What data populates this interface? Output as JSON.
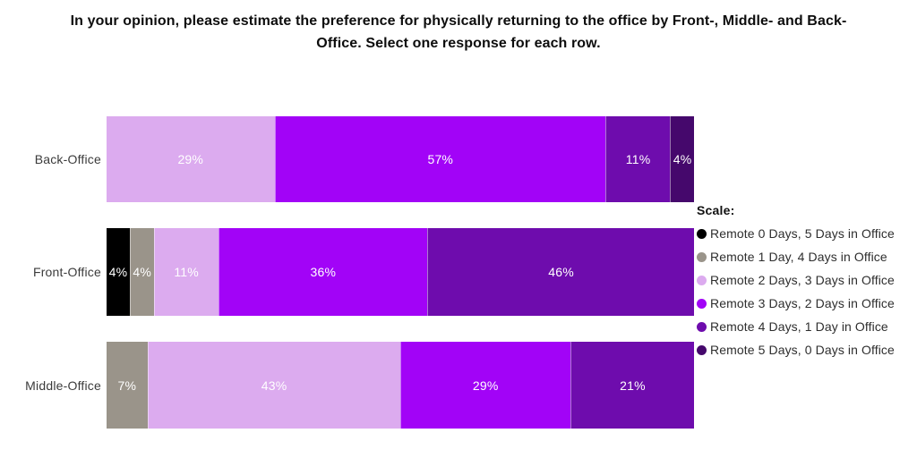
{
  "title": "In your opinion, please estimate the preference for physically returning to the office by Front-, Middle- and Back-Office. Select one response for each row.",
  "colors": {
    "remote0": "#000000",
    "remote1": "#9a948a",
    "remote2": "#dcabef",
    "remote3": "#a203f7",
    "remote4": "#6e0cad",
    "remote5": "#45086c",
    "segment_label_text": "#ffffff",
    "row_label_text": "#3b3b3b"
  },
  "legend": {
    "heading": "Scale:",
    "items": [
      {
        "label": "Remote 0 Days, 5 Days in Office",
        "color_key": "remote0"
      },
      {
        "label": "Remote 1 Day, 4 Days in Office",
        "color_key": "remote1"
      },
      {
        "label": "Remote 2 Days, 3 Days in Office",
        "color_key": "remote2"
      },
      {
        "label": "Remote 3 Days, 2 Days in Office",
        "color_key": "remote3"
      },
      {
        "label": "Remote 4 Days, 1 Day in Office",
        "color_key": "remote4"
      },
      {
        "label": "Remote 5 Days, 0 Days in Office",
        "color_key": "remote5"
      }
    ]
  },
  "rows": [
    {
      "label": "Back-Office",
      "segments": [
        {
          "value": 29,
          "display": "29%",
          "color_key": "remote2"
        },
        {
          "value": 57,
          "display": "57%",
          "color_key": "remote3"
        },
        {
          "value": 11,
          "display": "11%",
          "color_key": "remote4"
        },
        {
          "value": 4,
          "display": "4%",
          "color_key": "remote5"
        }
      ]
    },
    {
      "label": "Front-Office",
      "segments": [
        {
          "value": 4,
          "display": "4%",
          "color_key": "remote0"
        },
        {
          "value": 4,
          "display": "4%",
          "color_key": "remote1"
        },
        {
          "value": 11,
          "display": "11%",
          "color_key": "remote2"
        },
        {
          "value": 36,
          "display": "36%",
          "color_key": "remote3"
        },
        {
          "value": 46,
          "display": "46%",
          "color_key": "remote4"
        }
      ]
    },
    {
      "label": "Middle-Office",
      "segments": [
        {
          "value": 7,
          "display": "7%",
          "color_key": "remote1"
        },
        {
          "value": 43,
          "display": "43%",
          "color_key": "remote2"
        },
        {
          "value": 29,
          "display": "29%",
          "color_key": "remote3"
        },
        {
          "value": 21,
          "display": "21%",
          "color_key": "remote4"
        }
      ]
    }
  ],
  "chart_data": {
    "type": "bar",
    "orientation": "horizontal-stacked",
    "title": "In your opinion, please estimate the preference for physically returning to the office by Front-, Middle- and Back-Office. Select one response for each row.",
    "categories": [
      "Back-Office",
      "Front-Office",
      "Middle-Office"
    ],
    "series": [
      {
        "name": "Remote 0 Days, 5 Days in Office",
        "color": "#000000",
        "values": [
          0,
          4,
          0
        ]
      },
      {
        "name": "Remote 1 Day, 4 Days in Office",
        "color": "#9a948a",
        "values": [
          0,
          4,
          7
        ]
      },
      {
        "name": "Remote 2 Days, 3 Days in Office",
        "color": "#dcabef",
        "values": [
          29,
          11,
          43
        ]
      },
      {
        "name": "Remote 3 Days, 2 Days in Office",
        "color": "#a203f7",
        "values": [
          57,
          36,
          29
        ]
      },
      {
        "name": "Remote 4 Days, 1 Day in Office",
        "color": "#6e0cad",
        "values": [
          11,
          46,
          21
        ]
      },
      {
        "name": "Remote 5 Days, 0 Days in Office",
        "color": "#45086c",
        "values": [
          4,
          0,
          0
        ]
      }
    ],
    "value_suffix": "%",
    "xlim": [
      0,
      100
    ],
    "grid": false,
    "legend_position": "right",
    "data_labels": "inside-white"
  }
}
